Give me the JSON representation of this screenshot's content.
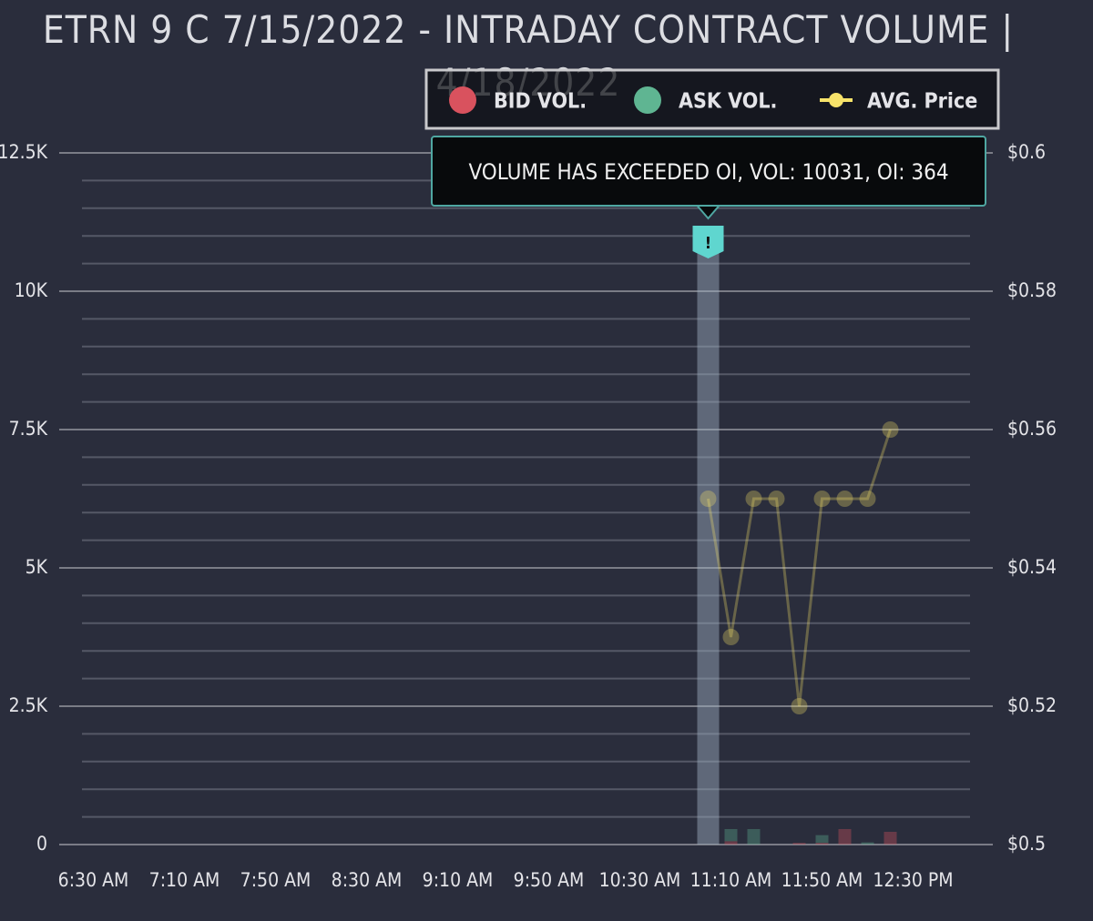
{
  "chart_data": {
    "type": "bar",
    "title": "ETRN 9 C 7/15/2022 - INTRADAY CONTRACT VOLUME | 4/18/2022",
    "x": [
      660,
      670,
      680,
      690,
      700,
      710,
      720,
      730,
      740
    ],
    "xlim": [
      375,
      785
    ],
    "xticks": [
      {
        "value": 390,
        "label": "6:30 AM"
      },
      {
        "value": 430,
        "label": "7:10 AM"
      },
      {
        "value": 470,
        "label": "7:50 AM"
      },
      {
        "value": 510,
        "label": "8:30 AM"
      },
      {
        "value": 550,
        "label": "9:10 AM"
      },
      {
        "value": 590,
        "label": "9:50 AM"
      },
      {
        "value": 630,
        "label": "10:30 AM"
      },
      {
        "value": 670,
        "label": "11:10 AM"
      },
      {
        "value": 710,
        "label": "11:50 AM"
      },
      {
        "value": 750,
        "label": "12:30 PM"
      }
    ],
    "ylim": [
      0,
      12500
    ],
    "yticks": [
      0,
      {
        "value": 2500,
        "label": "2.5K"
      },
      {
        "value": 5000,
        "label": "5K"
      },
      {
        "value": 7500,
        "label": "7.5K"
      },
      {
        "value": 10000,
        "label": "10K"
      },
      {
        "value": 12500,
        "label": "12.5K"
      }
    ],
    "y2lim": [
      0.5,
      0.6
    ],
    "y2ticks": [
      {
        "value": 0.5,
        "label": "$0.5"
      },
      {
        "value": 0.52,
        "label": "$0.52"
      },
      {
        "value": 0.54,
        "label": "$0.54"
      },
      {
        "value": 0.56,
        "label": "$0.56"
      },
      {
        "value": 0.58,
        "label": "$0.58"
      },
      {
        "value": 0.6,
        "label": "$0.6"
      }
    ],
    "grid": true,
    "series": [
      {
        "name": "BID VOL.",
        "color": "#d9525e",
        "values": [
          null,
          60,
          0,
          0,
          30,
          30,
          280,
          0,
          230
        ]
      },
      {
        "name": "ASK VOL.",
        "color": "#5fb592",
        "values": [
          null,
          220,
          280,
          0,
          0,
          140,
          0,
          40,
          0
        ]
      },
      {
        "name": "AVG. Price",
        "color": "#f7e36a",
        "axis": "y2",
        "type": "line",
        "values": [
          0.55,
          0.53,
          0.55,
          0.55,
          0.52,
          0.55,
          0.55,
          0.55,
          0.56
        ]
      }
    ],
    "annotation": {
      "x": 660,
      "marker": "!",
      "text": "Volume has exceeded OI, VOL: 10031, OI: 364"
    }
  }
}
